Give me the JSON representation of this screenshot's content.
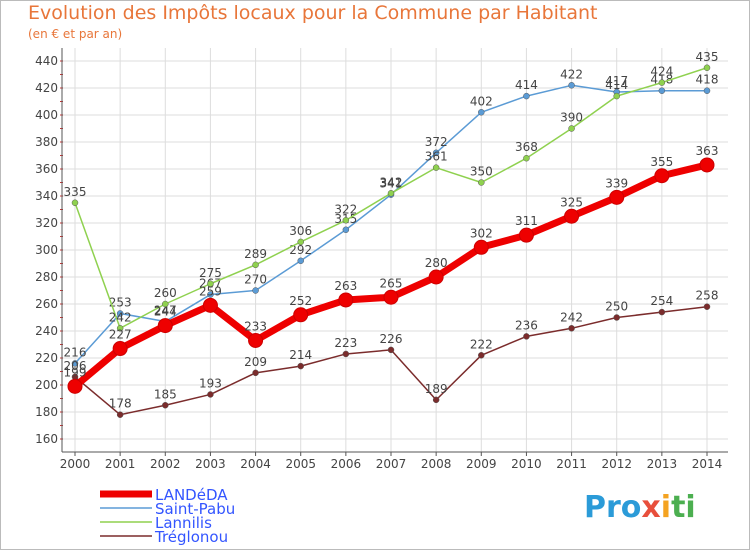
{
  "title": "Evolution des Impôts locaux pour la Commune par Habitant",
  "subtitle": "(en € et par an)",
  "logo_text": "Proxiti",
  "colors": {
    "landeda": "#ee0000",
    "saint_pabu": "#5b9bd5",
    "lannilis": "#8fd14f",
    "treglonou": "#7b2c2c",
    "axis": "#555555",
    "grid": "#dddddd",
    "legend_text": "#3355ff"
  },
  "chart_data": {
    "type": "line",
    "x": [
      2000,
      2001,
      2002,
      2003,
      2004,
      2005,
      2006,
      2007,
      2008,
      2009,
      2010,
      2011,
      2012,
      2013,
      2014
    ],
    "ylim": [
      160,
      440
    ],
    "yticks": [
      160,
      180,
      200,
      220,
      240,
      260,
      280,
      300,
      320,
      340,
      360,
      380,
      400,
      420,
      440
    ],
    "grid": true,
    "legend_position": "bottom-left",
    "series": [
      {
        "name": "Saint-Pabu",
        "color": "#5b9bd5",
        "values": [
          216,
          253,
          247,
          267,
          270,
          292,
          315,
          341,
          372,
          402,
          414,
          422,
          417,
          418,
          418
        ],
        "labels": [
          "216",
          "253",
          "247",
          "267",
          "270",
          "292",
          "315",
          "341",
          "372",
          "402",
          "414",
          "422",
          "417",
          "418",
          "418"
        ]
      },
      {
        "name": "Lannilis",
        "color": "#8fd14f",
        "values": [
          335,
          242,
          260,
          275,
          289,
          306,
          322,
          342,
          361,
          350,
          368,
          390,
          414,
          424,
          435
        ],
        "labels": [
          "335",
          "242",
          "260",
          "275",
          "289",
          "306",
          "322",
          "342",
          "361",
          "350",
          "368",
          "390",
          "414",
          "424",
          "435"
        ]
      },
      {
        "name": "Tréglonou",
        "color": "#7b2c2c",
        "values": [
          206,
          178,
          185,
          193,
          209,
          214,
          223,
          226,
          189,
          222,
          236,
          242,
          250,
          254,
          258
        ],
        "labels": [
          "206",
          "178",
          "185",
          "193",
          "209",
          "214",
          "223",
          "226",
          "189",
          "222",
          "236",
          "242",
          "250",
          "254",
          "258"
        ]
      },
      {
        "name": "LANDéDA",
        "color": "#ee0000",
        "values": [
          199,
          227,
          244,
          259,
          233,
          252,
          263,
          265,
          280,
          302,
          311,
          325,
          339,
          355,
          363
        ],
        "labels": [
          "199",
          "227",
          "244",
          "259",
          "233",
          "252",
          "263",
          "265",
          "280",
          "302",
          "311",
          "325",
          "339",
          "355",
          "363"
        ]
      }
    ]
  }
}
